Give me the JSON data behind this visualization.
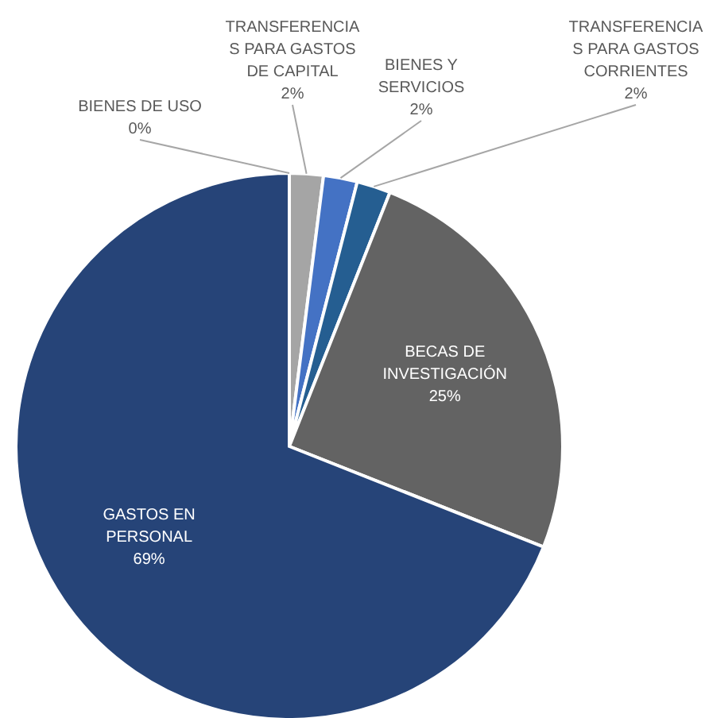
{
  "chart_data": {
    "type": "pie",
    "categories": [
      "BIENES DE USO",
      "TRANSFERENCIAS PARA GASTOS DE CAPITAL",
      "BIENES Y SERVICIOS",
      "TRANSFERENCIAS PARA GASTOS CORRIENTES",
      "BECAS DE INVESTIGACIÓN",
      "GASTOS EN PERSONAL"
    ],
    "values": [
      0,
      2,
      2,
      2,
      25,
      69
    ],
    "colors": [
      "#a5a5a5",
      "#a5a5a5",
      "#4472c4",
      "#255e91",
      "#636363",
      "#264478"
    ],
    "value_labels": [
      "0%",
      "2%",
      "2%",
      "2%",
      "25%",
      "69%"
    ]
  }
}
